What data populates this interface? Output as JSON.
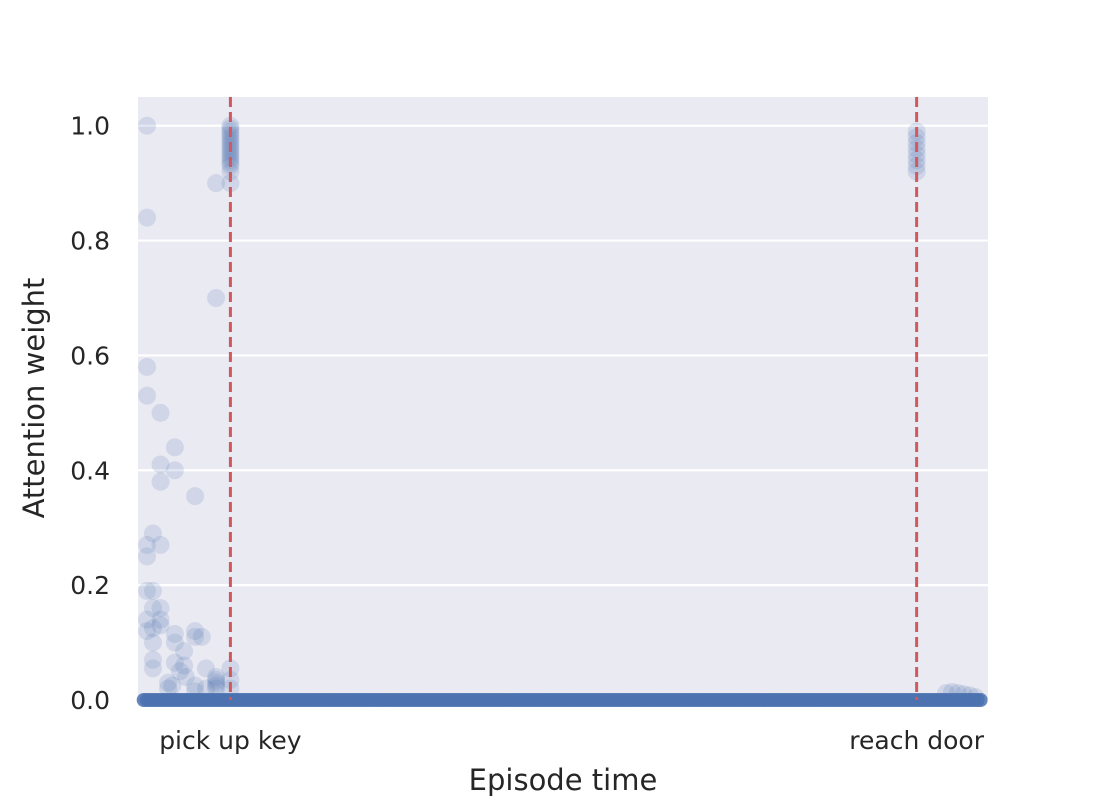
{
  "chart_data": {
    "type": "scatter",
    "title": "",
    "xlabel": "Episode time",
    "ylabel": "Attention weight",
    "ylim": [
      0,
      1.05
    ],
    "xlim": [
      0,
      100
    ],
    "yticks": [
      "0.0",
      "0.2",
      "0.4",
      "0.6",
      "0.8",
      "1.0"
    ],
    "grid": true,
    "legend": "none",
    "colors": {
      "points": "#4c72b0",
      "event_lines": "#d1585d",
      "plot_background": "#eaeaf2",
      "grid": "#ffffff"
    },
    "events": [
      {
        "label": "pick up key",
        "x": 10.5
      },
      {
        "label": "reach door",
        "x": 92
      }
    ],
    "series": [
      {
        "points": [
          [
            0.6,
            1.0
          ],
          [
            0.6,
            0.84
          ],
          [
            0.6,
            0.58
          ],
          [
            0.6,
            0.53
          ],
          [
            0.6,
            0.27
          ],
          [
            0.6,
            0.25
          ],
          [
            0.6,
            0.19
          ],
          [
            0.6,
            0.14
          ],
          [
            0.6,
            0.12
          ],
          [
            1.3,
            0.29
          ],
          [
            1.3,
            0.19
          ],
          [
            1.3,
            0.16
          ],
          [
            1.3,
            0.125
          ],
          [
            1.3,
            0.1
          ],
          [
            1.3,
            0.07
          ],
          [
            1.3,
            0.055
          ],
          [
            2.2,
            0.5
          ],
          [
            2.2,
            0.41
          ],
          [
            2.2,
            0.38
          ],
          [
            2.2,
            0.27
          ],
          [
            2.2,
            0.16
          ],
          [
            2.2,
            0.14
          ],
          [
            2.2,
            0.13
          ],
          [
            3.1,
            0.03
          ],
          [
            3.1,
            0.02
          ],
          [
            3.6,
            0.025
          ],
          [
            3.9,
            0.44
          ],
          [
            3.9,
            0.4
          ],
          [
            3.9,
            0.115
          ],
          [
            3.9,
            0.1
          ],
          [
            3.9,
            0.065
          ],
          [
            4.5,
            0.05
          ],
          [
            5.0,
            0.085
          ],
          [
            5.0,
            0.06
          ],
          [
            5.2,
            0.04
          ],
          [
            6.3,
            0.355
          ],
          [
            6.3,
            0.12
          ],
          [
            6.3,
            0.11
          ],
          [
            6.3,
            0.025
          ],
          [
            6.3,
            0.015
          ],
          [
            7.1,
            0.11
          ],
          [
            7.6,
            0.055
          ],
          [
            7.6,
            0.02
          ],
          [
            8.8,
            0.9
          ],
          [
            8.8,
            0.7
          ],
          [
            8.8,
            0.04
          ],
          [
            8.8,
            0.035
          ],
          [
            8.8,
            0.03
          ],
          [
            8.8,
            0.025
          ],
          [
            8.8,
            0.02
          ],
          [
            10.5,
            1.0
          ],
          [
            10.5,
            0.995
          ],
          [
            10.5,
            0.99
          ],
          [
            10.5,
            0.985
          ],
          [
            10.5,
            0.98
          ],
          [
            10.5,
            0.975
          ],
          [
            10.5,
            0.97
          ],
          [
            10.5,
            0.965
          ],
          [
            10.5,
            0.96
          ],
          [
            10.5,
            0.955
          ],
          [
            10.5,
            0.95
          ],
          [
            10.5,
            0.945
          ],
          [
            10.5,
            0.94
          ],
          [
            10.5,
            0.935
          ],
          [
            10.5,
            0.93
          ],
          [
            10.5,
            0.92
          ],
          [
            10.5,
            0.9
          ],
          [
            10.5,
            0.055
          ],
          [
            10.5,
            0.035
          ],
          [
            10.5,
            0.02
          ],
          [
            92,
            0.99
          ],
          [
            92,
            0.98
          ],
          [
            92,
            0.97
          ],
          [
            92,
            0.96
          ],
          [
            92,
            0.95
          ],
          [
            92,
            0.94
          ],
          [
            92,
            0.93
          ],
          [
            92,
            0.92
          ],
          [
            95.5,
            0.012
          ],
          [
            96.2,
            0.014
          ],
          [
            96.9,
            0.012
          ],
          [
            97.6,
            0.01
          ],
          [
            98.3,
            0.008
          ],
          [
            99.0,
            0.005
          ]
        ]
      }
    ]
  }
}
